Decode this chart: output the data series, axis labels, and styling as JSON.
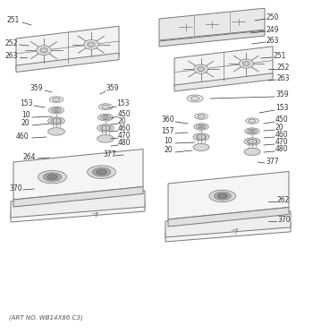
{
  "footer": "(ART NO. WB14X86 C3)",
  "bg_color": "#ffffff",
  "lc": "#aaaaaa",
  "dark_lc": "#777777",
  "label_color": "#333333",
  "figsize": [
    3.5,
    3.73
  ],
  "dpi": 100
}
